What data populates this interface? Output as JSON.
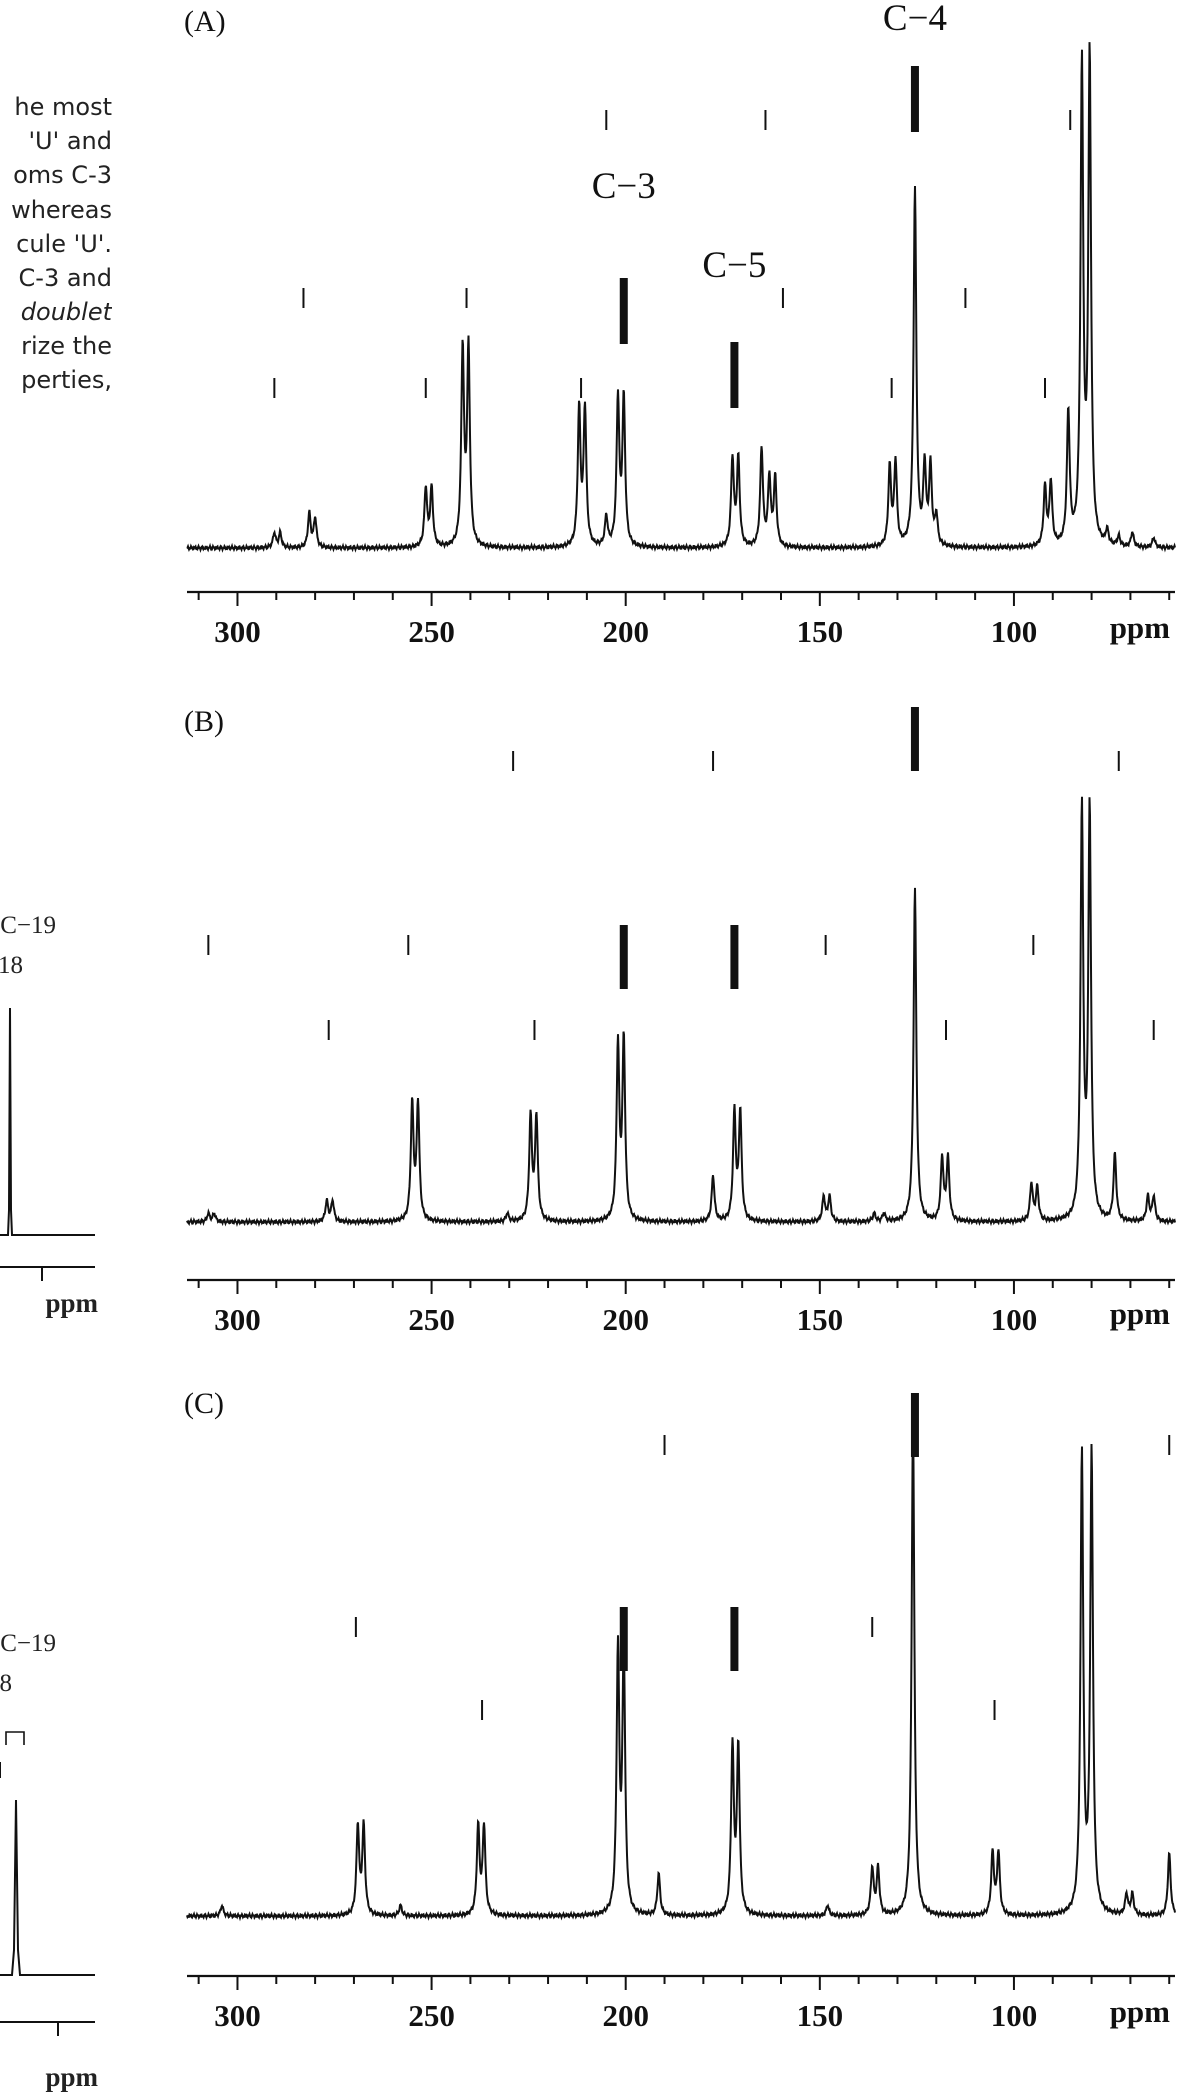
{
  "left_text": {
    "lines": [
      {
        "text": "he most",
        "italic": false
      },
      {
        "text": "'U' and",
        "italic": false
      },
      {
        "text": "oms C-3",
        "italic": false
      },
      {
        "text": "whereas",
        "italic": false
      },
      {
        "text": "cule 'U'.",
        "italic": false
      },
      {
        "text": "C-3 and",
        "italic": false
      },
      {
        "text": "doublet",
        "italic": true
      },
      {
        "text": "rize the",
        "italic": false
      },
      {
        "text": "perties,",
        "italic": false
      }
    ],
    "fragments": [
      {
        "id": "frag-1-c19",
        "text": "C−19",
        "bold": false
      },
      {
        "id": "frag-1-18",
        "text": "18",
        "bold": false
      },
      {
        "id": "frag-1-ppm",
        "text": "ppm",
        "bold": true
      },
      {
        "id": "frag-2-c19",
        "text": "C−19",
        "bold": false
      },
      {
        "id": "frag-2-8",
        "text": "8",
        "bold": false
      },
      {
        "id": "frag-2-ppm",
        "text": "ppm",
        "bold": true
      }
    ]
  },
  "chart_data": [
    {
      "type": "line",
      "panel_label": "(A)",
      "x_unit": "ppm",
      "xlim": [
        313,
        58
      ],
      "x_ticks": [
        300,
        250,
        200,
        150,
        100
      ],
      "grid": false,
      "carbon_labels": [
        {
          "text": "C−3",
          "ppm": 200.5
        },
        {
          "text": "C−5",
          "ppm": 172
        },
        {
          "text": "C−4",
          "ppm": 125.5
        }
      ],
      "bar_markers": [
        {
          "ppm": 125.5,
          "height": 1.0
        },
        {
          "ppm": 200.5,
          "height": 0.6
        },
        {
          "ppm": 172,
          "height": 0.41
        }
      ],
      "tick_marks": [
        {
          "ppm": 205,
          "level": 1
        },
        {
          "ppm": 164,
          "level": 1
        },
        {
          "ppm": 85.5,
          "level": 1
        },
        {
          "ppm": 283,
          "level": 2
        },
        {
          "ppm": 241,
          "level": 2
        },
        {
          "ppm": 159.5,
          "level": 2
        },
        {
          "ppm": 112.5,
          "level": 2
        },
        {
          "ppm": 290.5,
          "level": 3
        },
        {
          "ppm": 251.5,
          "level": 3
        },
        {
          "ppm": 211.5,
          "level": 3
        },
        {
          "ppm": 131.5,
          "level": 3
        },
        {
          "ppm": 92,
          "level": 3
        }
      ],
      "peaks": [
        {
          "ppm": 290.5,
          "h": 0.03
        },
        {
          "ppm": 289,
          "h": 0.03
        },
        {
          "ppm": 281.5,
          "h": 0.07
        },
        {
          "ppm": 280,
          "h": 0.06
        },
        {
          "ppm": 251.5,
          "h": 0.12
        },
        {
          "ppm": 250,
          "h": 0.12
        },
        {
          "ppm": 242,
          "h": 0.4
        },
        {
          "ppm": 240.5,
          "h": 0.4
        },
        {
          "ppm": 212,
          "h": 0.28
        },
        {
          "ppm": 210.5,
          "h": 0.28
        },
        {
          "ppm": 205,
          "h": 0.06
        },
        {
          "ppm": 202,
          "h": 0.3
        },
        {
          "ppm": 200.5,
          "h": 0.3
        },
        {
          "ppm": 172.5,
          "h": 0.18
        },
        {
          "ppm": 171,
          "h": 0.18
        },
        {
          "ppm": 165,
          "h": 0.2
        },
        {
          "ppm": 163,
          "h": 0.14
        },
        {
          "ppm": 161.5,
          "h": 0.14
        },
        {
          "ppm": 132,
          "h": 0.16
        },
        {
          "ppm": 130.5,
          "h": 0.17
        },
        {
          "ppm": 125.5,
          "h": 0.73
        },
        {
          "ppm": 123,
          "h": 0.16
        },
        {
          "ppm": 121.5,
          "h": 0.16
        },
        {
          "ppm": 120,
          "h": 0.06
        },
        {
          "ppm": 92,
          "h": 0.12
        },
        {
          "ppm": 90.5,
          "h": 0.13
        },
        {
          "ppm": 86,
          "h": 0.27
        },
        {
          "ppm": 82.5,
          "h": 0.97
        },
        {
          "ppm": 80.5,
          "h": 0.99
        },
        {
          "ppm": 76,
          "h": 0.03
        },
        {
          "ppm": 73,
          "h": 0.02
        },
        {
          "ppm": 69.5,
          "h": 0.03
        },
        {
          "ppm": 64,
          "h": 0.02
        }
      ]
    },
    {
      "type": "line",
      "panel_label": "(B)",
      "x_unit": "ppm",
      "xlim": [
        313,
        58
      ],
      "x_ticks": [
        300,
        250,
        200,
        150,
        100
      ],
      "grid": false,
      "carbon_labels": [],
      "bar_markers": [
        {
          "ppm": 125.5,
          "height": 1.0
        },
        {
          "ppm": 200.5,
          "height": 0.6
        },
        {
          "ppm": 172,
          "height": 0.6
        }
      ],
      "tick_marks": [
        {
          "ppm": 229,
          "level": 1
        },
        {
          "ppm": 177.5,
          "level": 1
        },
        {
          "ppm": 73,
          "level": 1
        },
        {
          "ppm": 307.5,
          "level": 2
        },
        {
          "ppm": 256,
          "level": 2
        },
        {
          "ppm": 148.5,
          "level": 2
        },
        {
          "ppm": 95,
          "level": 2
        },
        {
          "ppm": 276.5,
          "level": 3
        },
        {
          "ppm": 223.5,
          "level": 3
        },
        {
          "ppm": 117.5,
          "level": 3
        },
        {
          "ppm": 64,
          "level": 3
        }
      ],
      "peaks": [
        {
          "ppm": 307.5,
          "h": 0.02
        },
        {
          "ppm": 306,
          "h": 0.02
        },
        {
          "ppm": 277,
          "h": 0.05
        },
        {
          "ppm": 275.5,
          "h": 0.05
        },
        {
          "ppm": 255,
          "h": 0.28
        },
        {
          "ppm": 253.5,
          "h": 0.28
        },
        {
          "ppm": 230.5,
          "h": 0.02
        },
        {
          "ppm": 224.5,
          "h": 0.25
        },
        {
          "ppm": 223,
          "h": 0.25
        },
        {
          "ppm": 202,
          "h": 0.42
        },
        {
          "ppm": 200.5,
          "h": 0.43
        },
        {
          "ppm": 177.5,
          "h": 0.11
        },
        {
          "ppm": 172,
          "h": 0.26
        },
        {
          "ppm": 170.5,
          "h": 0.26
        },
        {
          "ppm": 149,
          "h": 0.06
        },
        {
          "ppm": 147.5,
          "h": 0.06
        },
        {
          "ppm": 136,
          "h": 0.02
        },
        {
          "ppm": 133.5,
          "h": 0.02
        },
        {
          "ppm": 125.5,
          "h": 0.8
        },
        {
          "ppm": 118.5,
          "h": 0.15
        },
        {
          "ppm": 117,
          "h": 0.15
        },
        {
          "ppm": 95.5,
          "h": 0.09
        },
        {
          "ppm": 94,
          "h": 0.08
        },
        {
          "ppm": 82.5,
          "h": 0.98
        },
        {
          "ppm": 80.5,
          "h": 0.98
        },
        {
          "ppm": 74,
          "h": 0.16
        },
        {
          "ppm": 65.5,
          "h": 0.06
        },
        {
          "ppm": 64,
          "h": 0.06
        }
      ]
    },
    {
      "type": "line",
      "panel_label": "(C)",
      "x_unit": "ppm",
      "xlim": [
        313,
        58
      ],
      "x_ticks": [
        300,
        250,
        200,
        150,
        100
      ],
      "grid": false,
      "carbon_labels": [],
      "bar_markers": [
        {
          "ppm": 125.5,
          "height": 1.0
        },
        {
          "ppm": 200.5,
          "height": 0.6
        },
        {
          "ppm": 172,
          "height": 0.6
        }
      ],
      "tick_marks": [
        {
          "ppm": 190,
          "level": 1
        },
        {
          "ppm": 60,
          "level": 1
        },
        {
          "ppm": 269.5,
          "level": 2
        },
        {
          "ppm": 136.5,
          "level": 2
        },
        {
          "ppm": 237,
          "level": 3
        },
        {
          "ppm": 105,
          "level": 3
        }
      ],
      "peaks": [
        {
          "ppm": 304,
          "h": 0.02
        },
        {
          "ppm": 269,
          "h": 0.17
        },
        {
          "ppm": 267.5,
          "h": 0.17
        },
        {
          "ppm": 258,
          "h": 0.02
        },
        {
          "ppm": 238,
          "h": 0.17
        },
        {
          "ppm": 236.5,
          "h": 0.17
        },
        {
          "ppm": 202,
          "h": 0.5
        },
        {
          "ppm": 200.5,
          "h": 0.5
        },
        {
          "ppm": 191.5,
          "h": 0.08
        },
        {
          "ppm": 172.5,
          "h": 0.32
        },
        {
          "ppm": 171,
          "h": 0.32
        },
        {
          "ppm": 148,
          "h": 0.02
        },
        {
          "ppm": 136.5,
          "h": 0.09
        },
        {
          "ppm": 135,
          "h": 0.09
        },
        {
          "ppm": 126,
          "h": 0.95
        },
        {
          "ppm": 105.5,
          "h": 0.12
        },
        {
          "ppm": 104,
          "h": 0.12
        },
        {
          "ppm": 82.5,
          "h": 0.88
        },
        {
          "ppm": 80,
          "h": 0.88
        },
        {
          "ppm": 71,
          "h": 0.04
        },
        {
          "ppm": 69.5,
          "h": 0.04
        },
        {
          "ppm": 60,
          "h": 0.12
        }
      ]
    }
  ]
}
